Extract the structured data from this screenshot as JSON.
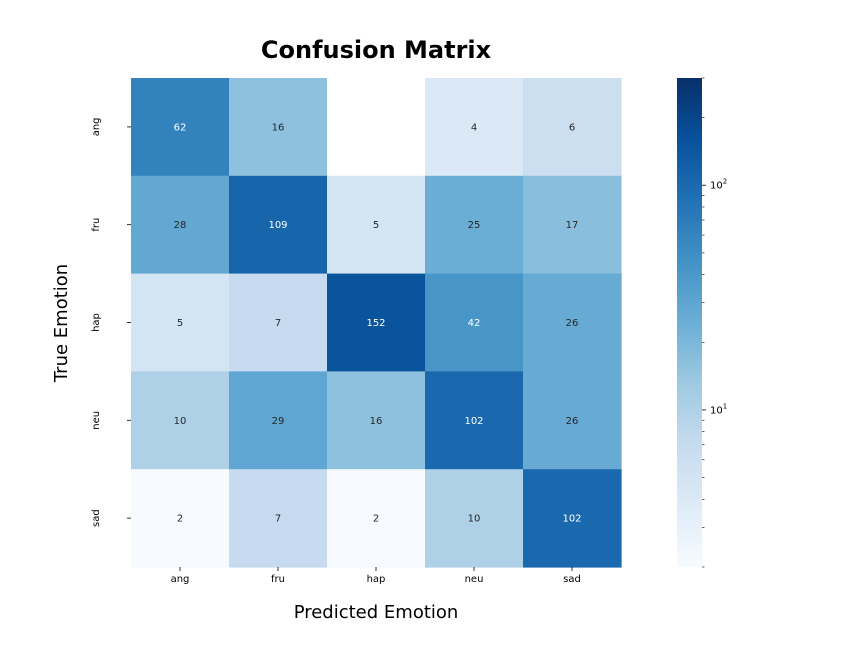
{
  "chart_data": {
    "type": "heatmap",
    "title": "Confusion Matrix",
    "xlabel": "Predicted Emotion",
    "ylabel": "True Emotion",
    "x_categories": [
      "ang",
      "fru",
      "hap",
      "neu",
      "sad"
    ],
    "y_categories": [
      "ang",
      "fru",
      "hap",
      "neu",
      "sad"
    ],
    "values": [
      [
        62,
        16,
        0,
        4,
        6
      ],
      [
        28,
        109,
        5,
        25,
        17
      ],
      [
        5,
        7,
        152,
        42,
        26
      ],
      [
        10,
        29,
        16,
        102,
        26
      ],
      [
        2,
        7,
        2,
        10,
        102
      ]
    ],
    "colormap": "Blues",
    "color_scale": "log",
    "color_range": [
      2,
      300
    ],
    "colorbar_ticks": [
      {
        "value": 10,
        "base": "10",
        "exp": "1"
      },
      {
        "value": 100,
        "base": "10",
        "exp": "2"
      }
    ],
    "empty_cell_color": "#ffffff"
  }
}
